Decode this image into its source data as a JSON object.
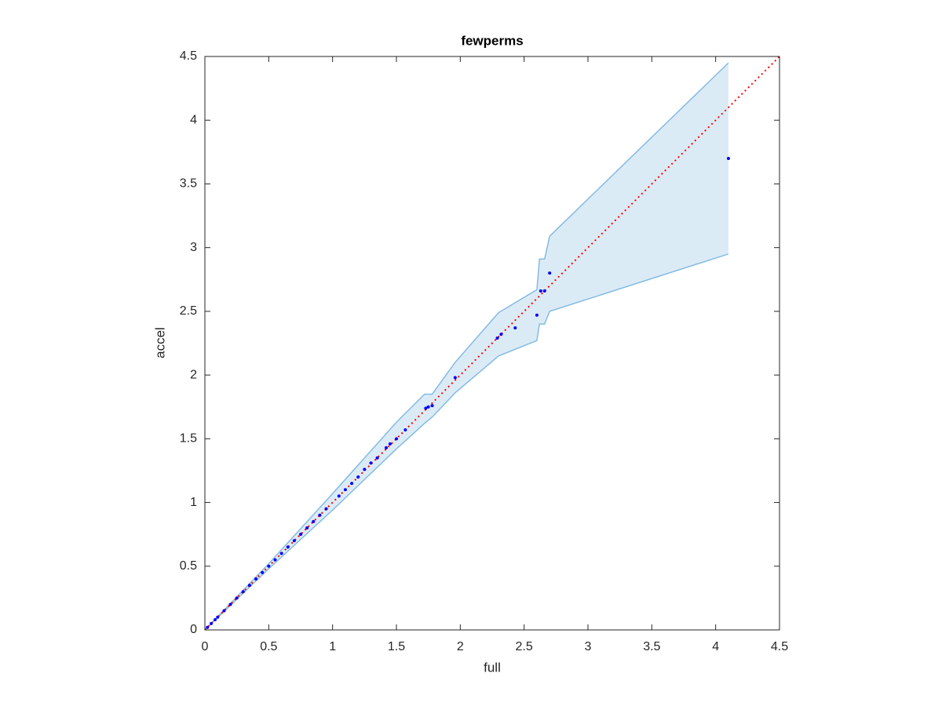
{
  "chart_data": {
    "type": "scatter",
    "title": "fewperms",
    "xlabel": "full",
    "ylabel": "accel",
    "xlim": [
      0,
      4.5
    ],
    "ylim": [
      0,
      4.5
    ],
    "xticks": [
      0,
      0.5,
      1,
      1.5,
      2,
      2.5,
      3,
      3.5,
      4,
      4.5
    ],
    "yticks": [
      0,
      0.5,
      1,
      1.5,
      2,
      2.5,
      3,
      3.5,
      4,
      4.5
    ],
    "band": {
      "color": "#5aa3d8",
      "x": [
        0,
        0.5,
        1,
        1.5,
        1.72,
        1.78,
        1.96,
        2.3,
        2.6,
        2.62,
        2.66,
        2.7,
        4.1
      ],
      "upper": [
        0,
        0.52,
        1.07,
        1.63,
        1.85,
        1.85,
        2.1,
        2.49,
        2.67,
        2.91,
        2.91,
        3.09,
        4.45
      ],
      "lower": [
        0,
        0.48,
        0.94,
        1.42,
        1.62,
        1.67,
        1.86,
        2.15,
        2.27,
        2.4,
        2.4,
        2.5,
        2.95
      ]
    },
    "reference": {
      "color": "#ff0000",
      "x": [
        0,
        4.5
      ],
      "y": [
        0,
        4.5
      ]
    },
    "points": {
      "color": "#0000ff",
      "x": [
        0.02,
        0.05,
        0.08,
        0.1,
        0.15,
        0.2,
        0.25,
        0.3,
        0.35,
        0.4,
        0.45,
        0.5,
        0.55,
        0.6,
        0.65,
        0.7,
        0.75,
        0.8,
        0.85,
        0.9,
        0.95,
        1.05,
        1.1,
        1.15,
        1.2,
        1.25,
        1.3,
        1.35,
        1.42,
        1.45,
        1.5,
        1.57,
        1.73,
        1.75,
        1.78,
        1.96,
        2.29,
        2.32,
        2.43,
        2.6,
        2.63,
        2.66,
        2.7,
        4.1
      ],
      "y": [
        0.02,
        0.05,
        0.08,
        0.1,
        0.15,
        0.2,
        0.25,
        0.3,
        0.35,
        0.4,
        0.45,
        0.5,
        0.55,
        0.6,
        0.65,
        0.7,
        0.75,
        0.8,
        0.85,
        0.9,
        0.95,
        1.05,
        1.1,
        1.15,
        1.2,
        1.26,
        1.31,
        1.35,
        1.43,
        1.46,
        1.5,
        1.57,
        1.74,
        1.75,
        1.76,
        1.98,
        2.29,
        2.32,
        2.37,
        2.47,
        2.66,
        2.66,
        2.8,
        3.7
      ]
    }
  }
}
